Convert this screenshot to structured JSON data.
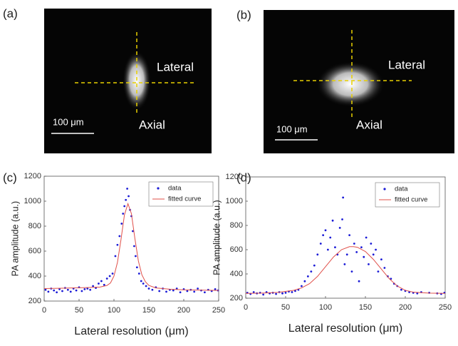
{
  "images": [
    {
      "label": "(a)",
      "lateral": "Lateral",
      "axial": "Axial",
      "scale_bar": "100 μm"
    },
    {
      "label": "(b)",
      "lateral": "Lateral",
      "axial": "Axial",
      "scale_bar": "100 μm"
    }
  ],
  "chart_data": [
    {
      "type": "scatter",
      "label": "(c)",
      "xlabel": "Lateral resolution (μm)",
      "ylabel": "PA amplitude (a.u.)",
      "xlim": [
        0,
        250
      ],
      "ylim": [
        200,
        1200
      ],
      "xticks": [
        0,
        50,
        100,
        150,
        200,
        250
      ],
      "yticks": [
        200,
        400,
        600,
        800,
        1000,
        1200
      ],
      "legend": "upper right",
      "series": [
        {
          "name": "data",
          "color": "#1a1ad6",
          "style": "points",
          "x": [
            2,
            6,
            10,
            14,
            18,
            22,
            26,
            30,
            34,
            38,
            42,
            46,
            50,
            54,
            58,
            62,
            66,
            70,
            74,
            78,
            82,
            86,
            90,
            94,
            98,
            102,
            105,
            108,
            111,
            113,
            115,
            117,
            119,
            121,
            123,
            125,
            127,
            129,
            131,
            133,
            136,
            139,
            142,
            146,
            150,
            155,
            160,
            165,
            170,
            175,
            180,
            185,
            190,
            195,
            200,
            205,
            210,
            215,
            220,
            225,
            230,
            235,
            240,
            245,
            249
          ],
          "values": [
            290,
            275,
            300,
            285,
            270,
            295,
            280,
            305,
            290,
            275,
            300,
            285,
            310,
            280,
            295,
            300,
            290,
            320,
            305,
            340,
            360,
            330,
            380,
            400,
            420,
            560,
            650,
            720,
            820,
            900,
            960,
            1010,
            1100,
            1040,
            930,
            880,
            760,
            640,
            560,
            470,
            420,
            360,
            340,
            320,
            300,
            290,
            310,
            280,
            300,
            275,
            290,
            285,
            300,
            270,
            295,
            280,
            290,
            275,
            300,
            285,
            270,
            290,
            280,
            295,
            285
          ]
        },
        {
          "name": "fitted curve",
          "color": "#e0504a",
          "style": "line",
          "x": [
            0,
            20,
            40,
            60,
            80,
            90,
            95,
            100,
            105,
            110,
            115,
            120,
            125,
            130,
            135,
            140,
            145,
            150,
            160,
            180,
            200,
            250
          ],
          "values": [
            300,
            302,
            305,
            308,
            312,
            325,
            345,
            400,
            510,
            690,
            890,
            980,
            900,
            700,
            520,
            410,
            355,
            325,
            305,
            295,
            290,
            285
          ]
        }
      ]
    },
    {
      "type": "scatter",
      "label": "(d)",
      "xlabel": "Lateral resolution (μm)",
      "ylabel": "PA amplitude (a.u.)",
      "xlim": [
        0,
        250
      ],
      "ylim": [
        200,
        1200
      ],
      "xticks": [
        0,
        50,
        100,
        150,
        200,
        250
      ],
      "yticks": [
        200,
        400,
        600,
        800,
        1000,
        1200
      ],
      "legend": "upper right",
      "series": [
        {
          "name": "data",
          "color": "#1a1ad6",
          "style": "points",
          "x": [
            2,
            6,
            10,
            14,
            18,
            22,
            26,
            30,
            34,
            38,
            42,
            46,
            50,
            54,
            58,
            62,
            66,
            70,
            74,
            78,
            82,
            86,
            90,
            94,
            97,
            100,
            103,
            106,
            109,
            112,
            115,
            118,
            121,
            122,
            124,
            127,
            130,
            133,
            136,
            139,
            142,
            145,
            148,
            151,
            154,
            157,
            160,
            163,
            166,
            170,
            174,
            178,
            182,
            186,
            190,
            195,
            200,
            205,
            210,
            215,
            220,
            230,
            240,
            245,
            249
          ],
          "values": [
            245,
            235,
            250,
            240,
            245,
            230,
            250,
            240,
            245,
            235,
            250,
            240,
            245,
            255,
            250,
            260,
            270,
            300,
            340,
            380,
            420,
            470,
            560,
            650,
            720,
            760,
            600,
            700,
            840,
            620,
            560,
            780,
            850,
            1030,
            480,
            560,
            720,
            420,
            650,
            580,
            340,
            620,
            540,
            700,
            480,
            650,
            560,
            600,
            420,
            520,
            450,
            380,
            360,
            320,
            300,
            270,
            260,
            250,
            245,
            240,
            250,
            245,
            240,
            235,
            245
          ]
        },
        {
          "name": "fitted curve",
          "color": "#e0504a",
          "style": "line",
          "x": [
            0,
            20,
            40,
            60,
            70,
            80,
            90,
            100,
            110,
            120,
            130,
            135,
            140,
            150,
            160,
            170,
            180,
            190,
            200,
            210,
            230,
            250
          ],
          "values": [
            240,
            242,
            248,
            265,
            285,
            320,
            380,
            460,
            540,
            600,
            625,
            625,
            620,
            585,
            520,
            440,
            360,
            300,
            265,
            250,
            242,
            240
          ]
        }
      ]
    }
  ]
}
